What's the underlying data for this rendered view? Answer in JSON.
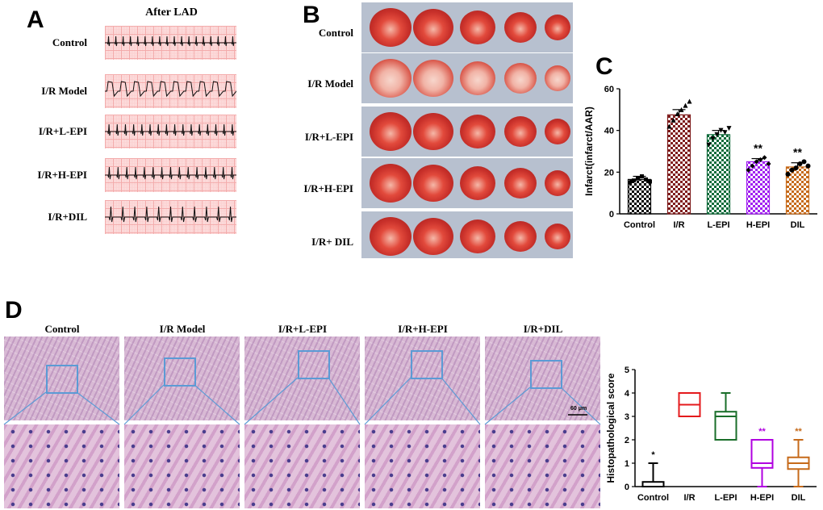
{
  "panel_a": {
    "letter": "A",
    "column_title": "After LAD",
    "rows": [
      "Control",
      "I/R Model",
      "I/R+L-EPI",
      "I/R+H-EPI",
      "I/R+DIL"
    ]
  },
  "panel_b": {
    "letter": "B",
    "rows": [
      "Control",
      "I/R Model",
      "I/R+L-EPI",
      "I/R+H-EPI",
      "I/R+ DIL"
    ]
  },
  "panel_c": {
    "letter": "C"
  },
  "panel_d": {
    "letter": "D",
    "columns": [
      "Control",
      "I/R Model",
      "I/R+L-EPI",
      "I/R+H-EPI",
      "I/R+DIL"
    ],
    "scale_bar": "60 μm"
  },
  "chart_data": [
    {
      "type": "bar",
      "ylabel": "Infarct(infarct/AAR)",
      "ylim": [
        0,
        60
      ],
      "yticks": [
        0,
        20,
        40,
        60
      ],
      "categories": [
        "Control",
        "I/R",
        "L-EPI",
        "H-EPI",
        "DIL"
      ],
      "values": [
        16.5,
        47.5,
        38,
        25,
        22.5
      ],
      "errors": [
        1.5,
        2.5,
        2,
        1.5,
        2
      ],
      "points": [
        [
          15,
          16,
          17,
          18,
          16.5,
          15.5
        ],
        [
          42,
          45,
          48,
          50,
          52,
          54
        ],
        [
          33,
          36,
          38,
          40,
          39,
          41
        ],
        [
          21,
          23,
          25,
          26,
          27,
          24
        ],
        [
          19,
          21,
          22,
          24,
          25,
          23
        ]
      ],
      "annotations": [
        "",
        "",
        "",
        "**",
        "**"
      ],
      "colors": [
        "#000000",
        "#7f1d1d",
        "#0f6b3a",
        "#a020f0",
        "#c66a1a"
      ]
    },
    {
      "type": "box",
      "ylabel": "Histopathological score",
      "ylim": [
        0,
        5
      ],
      "yticks": [
        0,
        1,
        2,
        3,
        4,
        5
      ],
      "categories": [
        "Control",
        "I/R",
        "L-EPI",
        "H-EPI",
        "DIL"
      ],
      "boxes": [
        {
          "min": 0,
          "q1": 0,
          "median": 0,
          "q3": 0.2,
          "max": 1
        },
        {
          "min": 3,
          "q1": 3,
          "median": 3.5,
          "q3": 4,
          "max": 4
        },
        {
          "min": 2,
          "q1": 2,
          "median": 3,
          "q3": 3.2,
          "max": 4
        },
        {
          "min": 0,
          "q1": 0.8,
          "median": 1,
          "q3": 2,
          "max": 2
        },
        {
          "min": 0,
          "q1": 0.75,
          "median": 1,
          "q3": 1.25,
          "max": 2
        }
      ],
      "annotations": [
        "*",
        "",
        "",
        "**",
        "**"
      ],
      "colors": [
        "#000000",
        "#e41a1c",
        "#1a6e2a",
        "#b000e0",
        "#c66a1a"
      ]
    }
  ]
}
